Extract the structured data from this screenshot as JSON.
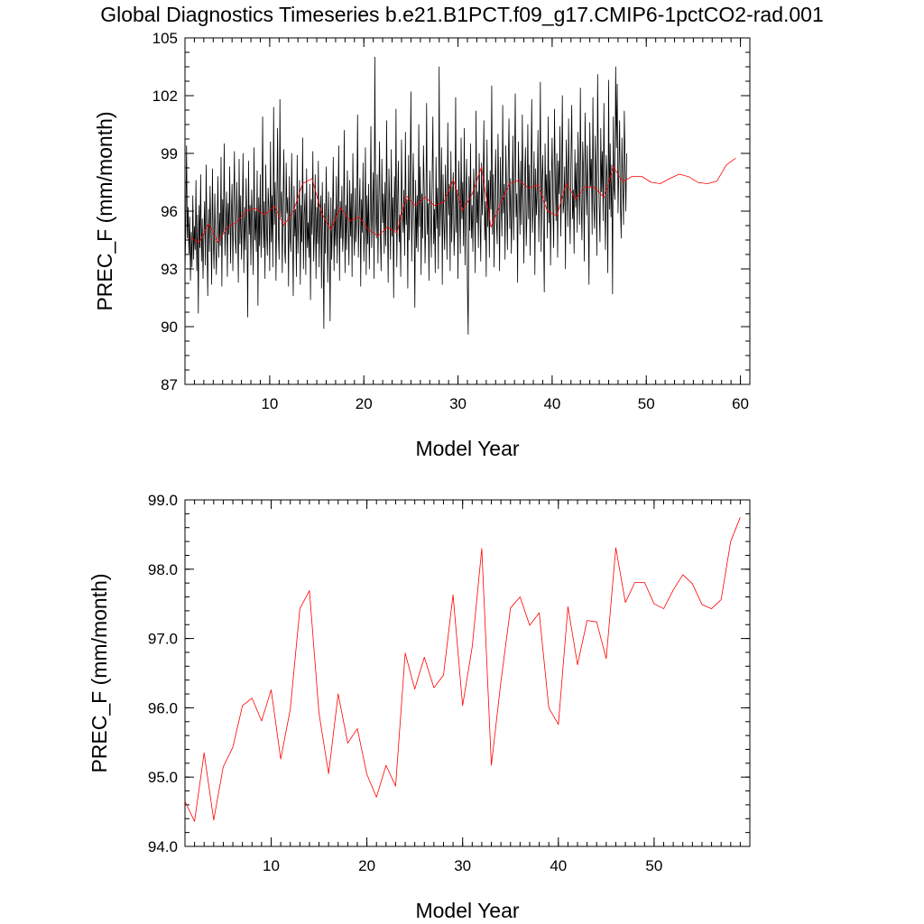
{
  "title": "Global Diagnostics Timeseries b.e21.B1PCT.f09_g17.CMIP6-1pctCO2-rad.001",
  "colors": {
    "monthly": "#000000",
    "annual": "#ff0000"
  },
  "chart_data": [
    {
      "type": "line",
      "xlabel": "Model Year",
      "ylabel": "PREC_F (mm/month)",
      "xlim": [
        1,
        61
      ],
      "ylim": [
        87,
        105
      ],
      "x_major_ticks": [
        10,
        20,
        30,
        40,
        50,
        60
      ],
      "x_tick_labels": [
        "10",
        "20",
        "30",
        "40",
        "50",
        "60"
      ],
      "y_major_ticks": [
        87,
        90,
        93,
        96,
        99,
        102,
        105
      ],
      "y_tick_labels": [
        "87",
        "90",
        "93",
        "96",
        "99",
        "102",
        "105"
      ],
      "series": [
        {
          "color": "#000000",
          "x_start": 1.0,
          "x_step": 0.08333,
          "values": [
            92.8,
            95.1,
            99.4,
            94.6,
            96.2,
            93.8,
            95.7,
            92.4,
            94.9,
            93.1,
            96.8,
            93.5,
            95.2,
            94.0,
            97.6,
            92.9,
            95.8,
            90.7,
            96.3,
            94.1,
            97.9,
            93.4,
            95.6,
            92.5,
            94.8,
            96.5,
            93.2,
            98.4,
            94.7,
            91.6,
            96.1,
            93.9,
            97.3,
            95.0,
            92.2,
            98.2,
            94.5,
            93.0,
            96.9,
            94.4,
            92.7,
            95.4,
            97.8,
            93.6,
            95.9,
            94.2,
            98.8,
            92.1,
            96.6,
            94.9,
            99.5,
            93.7,
            95.3,
            97.0,
            92.6,
            96.4,
            94.8,
            98.3,
            93.3,
            95.7,
            97.4,
            92.9,
            96.0,
            99.1,
            94.6,
            93.8,
            97.5,
            95.2,
            92.3,
            98.7,
            94.3,
            96.8,
            93.5,
            95.6,
            99.0,
            92.8,
            96.2,
            94.0,
            97.7,
            95.1,
            90.5,
            98.6,
            94.8,
            96.3,
            93.2,
            97.1,
            95.4,
            92.7,
            99.3,
            94.5,
            96.0,
            93.9,
            98.1,
            91.1,
            96.7,
            94.2,
            97.9,
            93.6,
            95.8,
            100.9,
            94.1,
            96.5,
            92.5,
            98.4,
            95.0,
            93.7,
            97.2,
            96.1,
            92.9,
            99.6,
            94.4,
            96.8,
            93.1,
            101.4,
            95.3,
            97.5,
            92.4,
            96.0,
            100.3,
            94.9,
            93.5,
            101.8,
            95.7,
            97.0,
            92.8,
            96.4,
            99.2,
            94.0,
            93.3,
            98.5,
            95.9,
            96.7,
            92.1,
            97.8,
            94.6,
            93.9,
            99.0,
            95.2,
            91.6,
            97.3,
            94.7,
            96.1,
            92.6,
            98.9,
            93.8,
            95.5,
            97.6,
            92.2,
            96.3,
            94.4,
            99.8,
            93.0,
            95.8,
            96.9,
            92.7,
            98.2,
            94.1,
            95.4,
            93.6,
            97.4,
            91.4,
            96.6,
            94.8,
            99.1,
            93.4,
            95.0,
            97.9,
            92.5,
            96.2,
            94.3,
            98.6,
            93.1,
            95.7,
            96.8,
            92.0,
            97.5,
            94.5,
            89.9,
            96.4,
            93.8,
            98.3,
            95.2,
            92.3,
            97.0,
            94.9,
            90.3,
            96.7,
            93.5,
            95.6,
            98.8,
            92.9,
            96.1,
            94.2,
            97.8,
            93.3,
            95.9,
            99.4,
            92.4,
            96.5,
            94.6,
            97.3,
            93.9,
            95.1,
            100.2,
            92.8,
            96.3,
            94.0,
            98.1,
            95.5,
            93.2,
            97.6,
            94.7,
            96.9,
            92.6,
            99.0,
            95.3,
            93.7,
            97.2,
            94.4,
            96.0,
            101.0,
            93.6,
            95.8,
            97.7,
            92.1,
            96.6,
            94.9,
            98.5,
            93.4,
            95.2,
            99.3,
            92.7,
            96.8,
            94.3,
            97.4,
            93.0,
            95.7,
            100.4,
            94.1,
            96.2,
            98.0,
            92.5,
            104.0,
            95.9,
            94.6,
            97.9,
            93.3,
            96.4,
            99.6,
            94.8,
            92.9,
            98.7,
            95.4,
            96.9,
            93.8,
            97.5,
            94.2,
            100.7,
            95.6,
            92.3,
            98.2,
            96.1,
            93.5,
            99.2,
            94.7,
            96.7,
            91.5,
            97.8,
            95.0,
            101.3,
            93.1,
            96.3,
            98.6,
            94.4,
            95.8,
            92.6,
            99.7,
            96.0,
            94.9,
            97.1,
            93.7,
            100.1,
            95.3,
            96.6,
            92.0,
            98.9,
            94.5,
            97.4,
            102.2,
            93.4,
            96.2,
            99.0,
            95.7,
            91.0,
            97.6,
            94.1,
            96.8,
            93.9,
            100.5,
            95.2,
            98.3,
            92.7,
            96.9,
            94.6,
            99.4,
            97.0,
            93.3,
            95.5,
            101.6,
            94.8,
            96.4,
            92.4,
            98.1,
            95.9,
            93.6,
            97.7,
            100.9,
            94.3,
            96.1,
            92.8,
            98.8,
            95.1,
            97.2,
            93.0,
            103.5,
            94.7,
            96.6,
            99.3,
            92.2,
            97.9,
            95.4,
            94.0,
            98.4,
            96.2,
            93.5,
            100.6,
            95.8,
            97.4,
            92.9,
            99.1,
            94.4,
            96.8,
            98.0,
            93.7,
            95.3,
            101.9,
            94.9,
            97.1,
            92.5,
            98.6,
            96.4,
            93.8,
            99.8,
            95.6,
            97.5,
            94.2,
            100.3,
            93.2,
            96.9,
            98.7,
            92.1,
            89.6,
            97.8,
            95.0,
            99.5,
            94.6,
            96.3,
            93.9,
            98.2,
            96.7,
            92.8,
            101.2,
            95.4,
            97.0,
            94.1,
            99.0,
            96.0,
            93.4,
            98.5,
            95.8,
            97.3,
            100.7,
            94.5,
            96.5,
            92.6,
            99.7,
            95.2,
            97.6,
            93.6,
            98.1,
            96.1,
            102.5,
            94.8,
            97.9,
            93.1,
            96.8,
            99.2,
            95.5,
            94.3,
            100.0,
            97.2,
            92.9,
            98.8,
            96.4,
            94.7,
            101.5,
            95.9,
            97.4,
            93.5,
            99.4,
            96.6,
            94.0,
            98.3,
            100.8,
            95.1,
            97.7,
            93.8,
            96.2,
            99.9,
            94.5,
            98.0,
            102.1,
            95.7,
            96.9,
            92.3,
            99.6,
            97.1,
            94.8,
            98.6,
            95.3,
            101.0,
            96.7,
            93.3,
            97.8,
            99.3,
            94.2,
            96.0,
            100.5,
            95.6,
            98.4,
            93.7,
            97.5,
            101.8,
            94.9,
            96.3,
            99.1,
            92.7,
            98.2,
            95.8,
            97.0,
            100.2,
            94.4,
            96.8,
            102.7,
            93.9,
            97.6,
            98.9,
            95.0,
            91.8,
            99.5,
            96.5,
            97.9,
            94.6,
            100.9,
            95.4,
            98.1,
            93.2,
            97.3,
            99.8,
            96.1,
            94.1,
            101.3,
            97.7,
            95.5,
            99.0,
            93.6,
            98.6,
            96.9,
            100.4,
            94.7,
            97.2,
            102.0,
            95.9,
            96.4,
            98.3,
            93.0,
            99.7,
            97.5,
            95.2,
            100.8,
            96.7,
            94.3,
            98.8,
            101.5,
            95.6,
            97.1,
            93.8,
            99.2,
            96.2,
            98.5,
            94.9,
            100.1,
            97.4,
            95.3,
            102.4,
            96.6,
            94.5,
            99.6,
            98.0,
            93.4,
            101.1,
            97.8,
            95.8,
            99.4,
            96.0,
            92.2,
            100.6,
            97.3,
            98.7,
            94.8,
            101.9,
            96.5,
            95.1,
            99.9,
            97.6,
            93.7,
            103.1,
            98.2,
            96.3,
            94.4,
            100.3,
            97.0,
            99.1,
            95.5,
            101.6,
            96.8,
            94.0,
            98.9,
            97.7,
            92.8,
            102.8,
            96.1,
            99.5,
            95.7,
            98.4,
            91.7,
            100.9,
            97.2,
            96.6,
            103.5,
            99.3,
            102.6,
            95.9,
            98.1,
            100.7,
            96.4,
            94.6,
            99.8,
            97.5,
            95.3,
            101.2,
            98.6,
            96.0,
            99.0
          ]
        },
        {
          "color": "#ff0000",
          "x_start": 1.5,
          "x_step": 1,
          "values": [
            94.65,
            94.36,
            95.35,
            94.38,
            95.15,
            95.43,
            96.03,
            96.14,
            95.81,
            96.26,
            95.26,
            95.98,
            97.43,
            97.69,
            95.92,
            95.05,
            96.2,
            95.49,
            95.7,
            95.04,
            94.71,
            95.17,
            94.87,
            96.79,
            96.27,
            96.73,
            96.29,
            96.47,
            97.63,
            96.03,
            96.88,
            98.3,
            95.17,
            96.38,
            97.44,
            97.6,
            97.19,
            97.37,
            96.0,
            95.76,
            97.46,
            96.62,
            97.26,
            97.24,
            96.71,
            98.31,
            97.52,
            97.81,
            97.81,
            97.5,
            97.43,
            97.7,
            97.92,
            97.79,
            97.49,
            97.43,
            97.56,
            98.4,
            98.75
          ]
        }
      ]
    },
    {
      "type": "line",
      "xlabel": "Model Year",
      "ylabel": "PREC_F (mm/month)",
      "xlim": [
        1,
        60
      ],
      "ylim": [
        94.0,
        99.0
      ],
      "x_major_ticks": [
        10,
        20,
        30,
        40,
        50
      ],
      "x_tick_labels": [
        "10",
        "20",
        "30",
        "40",
        "50"
      ],
      "y_major_ticks": [
        94,
        95,
        96,
        97,
        98,
        99
      ],
      "y_tick_labels": [
        "94.0",
        "95.0",
        "96.0",
        "97.0",
        "98.0",
        "99.0"
      ],
      "series": [
        {
          "color": "#ff0000",
          "x_start": 1.0,
          "x_step": 1,
          "values": [
            94.65,
            94.36,
            95.35,
            94.38,
            95.15,
            95.43,
            96.03,
            96.14,
            95.81,
            96.26,
            95.26,
            95.98,
            97.43,
            97.69,
            95.92,
            95.05,
            96.2,
            95.49,
            95.7,
            95.04,
            94.71,
            95.17,
            94.87,
            96.79,
            96.27,
            96.73,
            96.29,
            96.47,
            97.63,
            96.03,
            96.88,
            98.3,
            95.17,
            96.38,
            97.44,
            97.6,
            97.19,
            97.37,
            96.0,
            95.76,
            97.46,
            96.62,
            97.26,
            97.24,
            96.71,
            98.31,
            97.52,
            97.81,
            97.81,
            97.5,
            97.43,
            97.7,
            97.92,
            97.79,
            97.49,
            97.43,
            97.56,
            98.4,
            98.75
          ]
        }
      ]
    }
  ]
}
